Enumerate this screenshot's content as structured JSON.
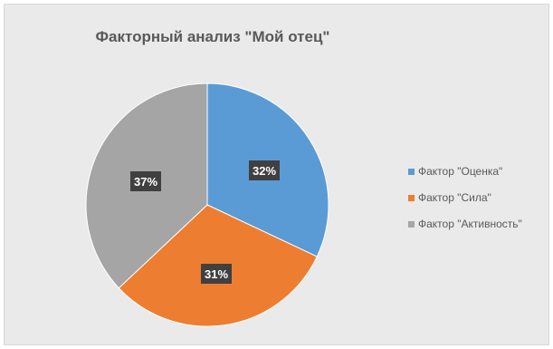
{
  "chart_data": {
    "type": "pie",
    "title": "Факторный анализ \"Мой отец\"",
    "categories": [
      "Фактор \"Оценка\"",
      "Фактор \"Сила\"",
      "Фактор \"Активность\""
    ],
    "values": [
      32,
      31,
      37
    ],
    "data_labels": [
      "32%",
      "31%",
      "37%"
    ],
    "colors": [
      "#5b9bd5",
      "#ed7d31",
      "#a5a5a5"
    ],
    "legend_position": "right",
    "start_angle": "top, clockwise"
  }
}
